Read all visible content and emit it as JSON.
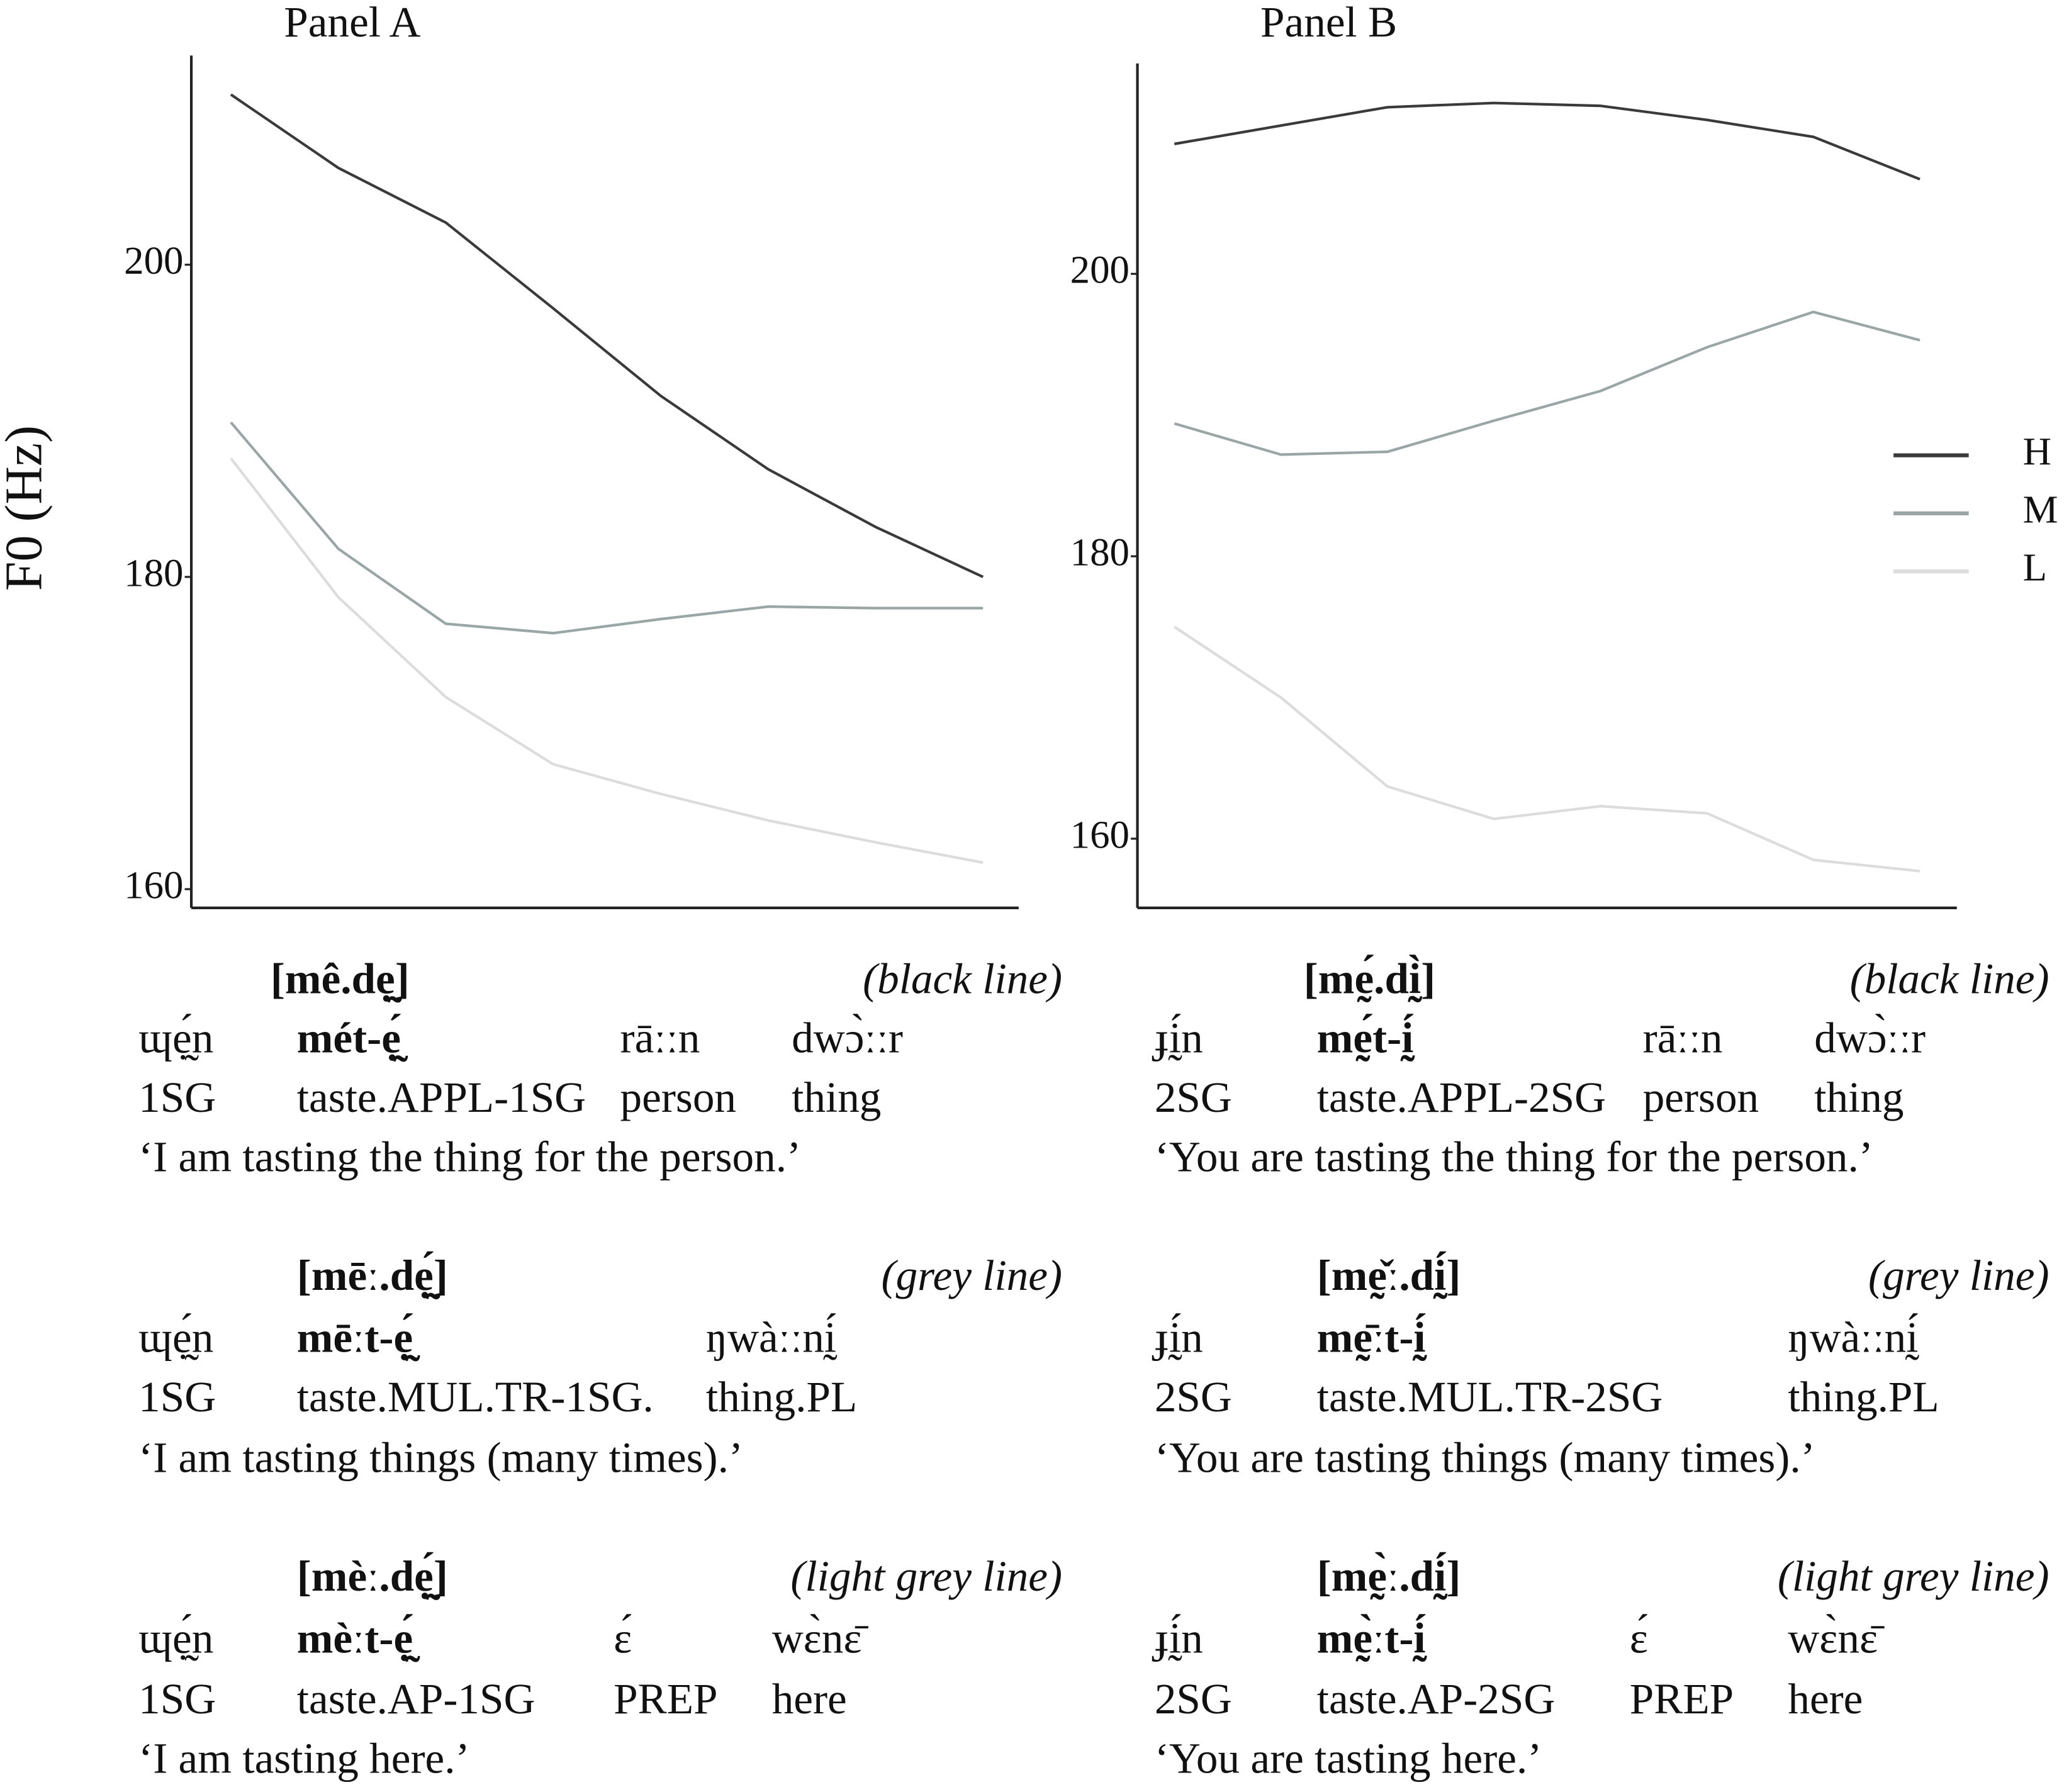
{
  "chart_data": [
    {
      "type": "line",
      "title": "Panel A",
      "y_label": "F0 (Hz)",
      "categories": [
        null,
        null,
        null,
        null,
        null,
        null,
        null,
        null
      ],
      "ylim": [
        158.8,
        213.4
      ],
      "yticks": [
        160,
        180,
        200
      ],
      "series": [
        {
          "name": "H",
          "color": "#3a3a3a",
          "values": [
            210.9,
            206.2,
            202.7,
            197.2,
            191.6,
            186.9,
            183.2,
            180.0
          ]
        },
        {
          "name": "M",
          "color": "#9aa5a5",
          "values": [
            189.9,
            181.8,
            177.0,
            176.4,
            177.3,
            178.1,
            178.0,
            178.0
          ]
        },
        {
          "name": "L",
          "color": "#dcdcdc",
          "values": [
            187.6,
            178.7,
            172.3,
            168.0,
            166.1,
            164.4,
            163.0,
            161.7
          ]
        }
      ]
    },
    {
      "type": "line",
      "title": "Panel B",
      "legend": "right",
      "categories": [
        null,
        null,
        null,
        null,
        null,
        null,
        null,
        null
      ],
      "ylim": [
        155.1,
        214.9
      ],
      "yticks": [
        160,
        180,
        200
      ],
      "series": [
        {
          "name": "H",
          "color": "#3a3a3a",
          "values": [
            209.2,
            210.5,
            211.8,
            212.1,
            211.9,
            210.9,
            209.7,
            206.7
          ]
        },
        {
          "name": "M",
          "color": "#9aa5a5",
          "values": [
            189.4,
            187.2,
            187.4,
            189.6,
            191.7,
            194.8,
            197.3,
            195.3
          ]
        },
        {
          "name": "L",
          "color": "#dcdcdc",
          "values": [
            175.0,
            170.0,
            163.7,
            161.4,
            162.3,
            161.8,
            158.5,
            157.7
          ]
        }
      ]
    }
  ],
  "glosses": [
    {
      "examples": [
        {
          "form": "[mê.dẹ̰]",
          "note": "(black line)",
          "words": [
            "ɰẹ̰́n",
            "mét-ẹ̰́",
            "rāːːn",
            "dwɔ̀ːːr"
          ],
          "glosses": [
            "1SG",
            "taste.APPL-1SG",
            "person",
            "thing"
          ],
          "translation": "‘I am tasting the thing for the person.’"
        },
        {
          "form": "[mēː.dẹ̰́]",
          "note": "(grey line)",
          "words": [
            "ɰẹ̰́n",
            "mēːt-ẹ̰́",
            "ŋwàːːnḭ́"
          ],
          "glosses": [
            "1SG",
            "taste.MUL.TR-1SG.",
            "thing.PL"
          ],
          "translation": "‘I am tasting things (many times).’"
        },
        {
          "form": "[mèː.dẹ̰́]",
          "note": "(light grey line)",
          "words": [
            "ɰẹ̰́n",
            "mèːt-ẹ̰́",
            "ɛ́",
            "wɛ̀nɛ̄"
          ],
          "glosses": [
            "1SG",
            "taste.AP-1SG",
            "PREP",
            "here"
          ],
          "translation": "‘I am tasting here.’"
        }
      ]
    },
    {
      "examples": [
        {
          "form": "[mḛ́.dḭ̀]",
          "note": "(black line)",
          "words": [
            "ɟḭ́n",
            "mḛ́t-ḭ́",
            "rāːːn",
            "dwɔ̀ːːr"
          ],
          "glosses": [
            "2SG",
            "taste.APPL-2SG",
            "person",
            "thing"
          ],
          "translation": "‘You are tasting the thing for the person.’"
        },
        {
          "form": "[mḛ̌ː.dḭ́]",
          "note": "(grey line)",
          "words": [
            "ɟḭ́n",
            "mḛ̄ːt-ḭ́",
            "ŋwàːːnḭ́"
          ],
          "glosses": [
            "2SG",
            "taste.MUL.TR-2SG",
            "thing.PL"
          ],
          "translation": "‘You are tasting things (many times).’"
        },
        {
          "form": "[mḛ̀ː.dḭ́]",
          "note": "(light grey line)",
          "words": [
            "ɟḭ́n",
            "mḛ̀ːt-ḭ́",
            "ɛ́",
            "wɛ̀nɛ̄"
          ],
          "glosses": [
            "2SG",
            "taste.AP-2SG",
            "PREP",
            "here"
          ],
          "translation": "‘You are tasting here.’"
        }
      ]
    }
  ]
}
